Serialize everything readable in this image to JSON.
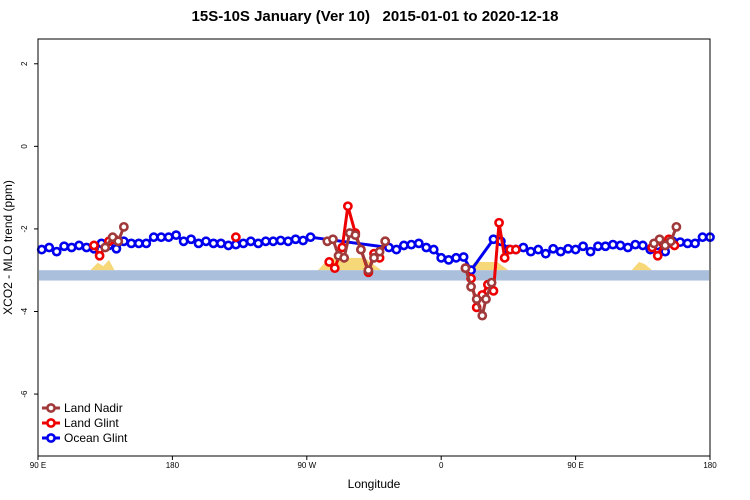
{
  "chart_data": {
    "type": "line",
    "title": "15S-10S January (Ver 10)   2015-01-01 to 2020-12-18",
    "xlabel": "Longitude",
    "ylabel": "XCO2 - MLO trend (ppm)",
    "xlim": [
      0,
      360
    ],
    "ylim": [
      -7.5,
      2.6
    ],
    "x_ticks": [
      {
        "value": 0,
        "label": "90 E"
      },
      {
        "value": 72,
        "label": "180"
      },
      {
        "value": 144,
        "label": "90 W"
      },
      {
        "value": 216,
        "label": "0"
      },
      {
        "value": 288,
        "label": "90 E"
      },
      {
        "value": 360,
        "label": "180"
      }
    ],
    "y_ticks": [
      2,
      0,
      -2,
      -4,
      -6
    ],
    "grid": false,
    "legend_position": "bottom-left",
    "band": {
      "y_top": -3.0,
      "y_bottom": -3.25,
      "color": "#a9bfdc"
    },
    "land_areas": [
      {
        "x": [
          28,
          32,
          35,
          38,
          41
        ],
        "h": [
          0.0,
          0.18,
          0.1,
          0.25,
          0.0
        ]
      },
      {
        "x": [
          150,
          156,
          175,
          184
        ],
        "h": [
          0.0,
          0.3,
          0.3,
          0.0
        ]
      },
      {
        "x": [
          230,
          234,
          246,
          252
        ],
        "h": [
          0.0,
          0.2,
          0.2,
          0.0
        ]
      },
      {
        "x": [
          318,
          322,
          325,
          329
        ],
        "h": [
          0.0,
          0.2,
          0.15,
          0.0
        ]
      }
    ],
    "series": [
      {
        "name": "Ocean Glint",
        "color": "#0000ee",
        "x": [
          2,
          6,
          10,
          14,
          18,
          22,
          26,
          30,
          34,
          38,
          42,
          46,
          50,
          54,
          58,
          62,
          66,
          70,
          74,
          78,
          82,
          86,
          90,
          94,
          98,
          102,
          106,
          110,
          114,
          118,
          122,
          126,
          130,
          134,
          138,
          142,
          146,
          188,
          192,
          196,
          200,
          204,
          208,
          212,
          216,
          220,
          224,
          228,
          232,
          244,
          248,
          252,
          256,
          260,
          264,
          268,
          272,
          276,
          280,
          284,
          288,
          292,
          296,
          300,
          304,
          308,
          312,
          316,
          320,
          324,
          328,
          332,
          336,
          340,
          344,
          348,
          352,
          356,
          360
        ],
        "values": [
          -2.5,
          -2.45,
          -2.55,
          -2.42,
          -2.45,
          -2.4,
          -2.45,
          -2.48,
          -2.35,
          -2.4,
          -2.48,
          -2.3,
          -2.35,
          -2.35,
          -2.35,
          -2.2,
          -2.2,
          -2.2,
          -2.15,
          -2.3,
          -2.25,
          -2.35,
          -2.3,
          -2.35,
          -2.35,
          -2.4,
          -2.38,
          -2.35,
          -2.3,
          -2.35,
          -2.3,
          -2.3,
          -2.28,
          -2.3,
          -2.25,
          -2.28,
          -2.2,
          -2.45,
          -2.5,
          -2.4,
          -2.38,
          -2.35,
          -2.45,
          -2.5,
          -2.7,
          -2.75,
          -2.7,
          -2.68,
          -3.0,
          -2.25,
          -2.3,
          -2.5,
          -2.5,
          -2.45,
          -2.55,
          -2.5,
          -2.6,
          -2.48,
          -2.55,
          -2.48,
          -2.5,
          -2.42,
          -2.55,
          -2.42,
          -2.42,
          -2.38,
          -2.4,
          -2.45,
          -2.38,
          -2.4,
          -2.5,
          -2.4,
          -2.55,
          -2.3,
          -2.32,
          -2.35,
          -2.35,
          -2.2,
          -2.2
        ]
      },
      {
        "name": "Land Glint",
        "color": "#ee0000",
        "segments": [
          {
            "x": [
              30,
              33,
              38,
              41
            ],
            "values": [
              -2.4,
              -2.65,
              -2.3,
              -2.25
            ]
          },
          {
            "x": [
              106
            ],
            "values": [
              -2.2
            ]
          },
          {
            "x": [
              156,
              159,
              163,
              166,
              170,
              173,
              177,
              180,
              183,
              186
            ],
            "values": [
              -2.8,
              -2.95,
              -2.45,
              -1.45,
              -2.1,
              -2.5,
              -3.05,
              -2.6,
              -2.7,
              -2.3
            ]
          },
          {
            "x": [
              229,
              232,
              235,
              238,
              241,
              244,
              247,
              250,
              253,
              256
            ],
            "values": [
              -2.95,
              -3.2,
              -3.9,
              -3.6,
              -3.35,
              -3.5,
              -1.85,
              -2.7,
              -2.5,
              -2.5
            ]
          },
          {
            "x": [
              329,
              332,
              335,
              338,
              341
            ],
            "values": [
              -2.45,
              -2.65,
              -2.35,
              -2.25,
              -2.4
            ]
          }
        ]
      },
      {
        "name": "Land Nadir",
        "color": "#a03a3a",
        "segments": [
          {
            "x": [
              36,
              40,
              43,
              46
            ],
            "values": [
              -2.45,
              -2.2,
              -2.3,
              -1.95
            ]
          },
          {
            "x": [
              155,
              158,
              161,
              164,
              167,
              170,
              173,
              177,
              180,
              183,
              186
            ],
            "values": [
              -2.3,
              -2.25,
              -2.65,
              -2.7,
              -2.1,
              -2.15,
              -2.5,
              -3.0,
              -2.7,
              -2.55,
              -2.3
            ]
          },
          {
            "x": [
              229,
              232,
              235,
              238,
              240,
              243
            ],
            "values": [
              -2.95,
              -3.4,
              -3.7,
              -4.1,
              -3.7,
              -3.3
            ]
          },
          {
            "x": [
              330,
              333,
              336,
              339,
              342
            ],
            "values": [
              -2.35,
              -2.25,
              -2.4,
              -2.3,
              -1.95
            ]
          }
        ]
      }
    ],
    "legend": [
      {
        "label": "Land Nadir",
        "color": "#a03a3a"
      },
      {
        "label": "Land Glint",
        "color": "#ee0000"
      },
      {
        "label": "Ocean Glint",
        "color": "#0000ee"
      }
    ]
  }
}
